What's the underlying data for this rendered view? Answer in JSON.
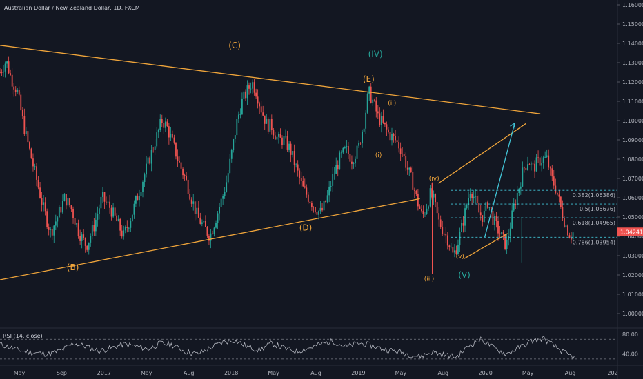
{
  "chart_data": {
    "type": "candlestick",
    "title": "Australian Dollar / New Zealand Dollar, 1D, FXCM",
    "price_axis": {
      "ylim": [
        0.9925,
        1.1625
      ],
      "ticks": [
        "1.16000",
        "1.15000",
        "1.14000",
        "1.13000",
        "1.12000",
        "1.11000",
        "1.10000",
        "1.09000",
        "1.08000",
        "1.07000",
        "1.06000",
        "1.05000",
        "1.04000",
        "1.03000",
        "1.02000",
        "1.01000",
        "1.00000"
      ],
      "last_price": "1.04241",
      "last_price_value": 1.04241
    },
    "time_axis": {
      "labels": [
        "May",
        "Sep",
        "2017",
        "May",
        "Aug",
        "2018",
        "May",
        "Aug",
        "2019",
        "May",
        "Aug",
        "2020",
        "May",
        "Aug",
        "202"
      ]
    },
    "close_path": [
      [
        0,
        1.125
      ],
      [
        0.01,
        1.131
      ],
      [
        0.018,
        1.122
      ],
      [
        0.028,
        1.115
      ],
      [
        0.04,
        1.095
      ],
      [
        0.055,
        1.075
      ],
      [
        0.07,
        1.055
      ],
      [
        0.082,
        1.042
      ],
      [
        0.093,
        1.05
      ],
      [
        0.105,
        1.06
      ],
      [
        0.115,
        1.055
      ],
      [
        0.128,
        1.042
      ],
      [
        0.14,
        1.035
      ],
      [
        0.152,
        1.045
      ],
      [
        0.165,
        1.06
      ],
      [
        0.178,
        1.055
      ],
      [
        0.19,
        1.047
      ],
      [
        0.2,
        1.04
      ],
      [
        0.212,
        1.05
      ],
      [
        0.222,
        1.06
      ],
      [
        0.232,
        1.07
      ],
      [
        0.242,
        1.08
      ],
      [
        0.252,
        1.09
      ],
      [
        0.262,
        1.1
      ],
      [
        0.27,
        1.097
      ],
      [
        0.28,
        1.088
      ],
      [
        0.29,
        1.078
      ],
      [
        0.3,
        1.07
      ],
      [
        0.31,
        1.06
      ],
      [
        0.32,
        1.05
      ],
      [
        0.33,
        1.045
      ],
      [
        0.34,
        1.04
      ],
      [
        0.35,
        1.05
      ],
      [
        0.36,
        1.06
      ],
      [
        0.368,
        1.07
      ],
      [
        0.376,
        1.085
      ],
      [
        0.384,
        1.1
      ],
      [
        0.392,
        1.11
      ],
      [
        0.4,
        1.115
      ],
      [
        0.408,
        1.12
      ],
      [
        0.415,
        1.115
      ],
      [
        0.424,
        1.105
      ],
      [
        0.432,
        1.098
      ],
      [
        0.44,
        1.097
      ],
      [
        0.45,
        1.09
      ],
      [
        0.46,
        1.09
      ],
      [
        0.47,
        1.085
      ],
      [
        0.48,
        1.075
      ],
      [
        0.49,
        1.065
      ],
      [
        0.5,
        1.06
      ],
      [
        0.51,
        1.055
      ],
      [
        0.52,
        1.052
      ],
      [
        0.53,
        1.06
      ],
      [
        0.54,
        1.072
      ],
      [
        0.55,
        1.08
      ],
      [
        0.56,
        1.085
      ],
      [
        0.57,
        1.08
      ],
      [
        0.58,
        1.085
      ],
      [
        0.59,
        1.1
      ],
      [
        0.597,
        1.115
      ],
      [
        0.604,
        1.11
      ],
      [
        0.612,
        1.102
      ],
      [
        0.62,
        1.098
      ],
      [
        0.63,
        1.093
      ],
      [
        0.64,
        1.09
      ],
      [
        0.65,
        1.085
      ],
      [
        0.66,
        1.075
      ],
      [
        0.668,
        1.068
      ],
      [
        0.676,
        1.058
      ],
      [
        0.684,
        1.05
      ],
      [
        0.69,
        1.055
      ],
      [
        0.697,
        1.062
      ],
      [
        0.703,
        1.058
      ],
      [
        0.71,
        1.048
      ],
      [
        0.718,
        1.043
      ],
      [
        0.726,
        1.038
      ],
      [
        0.734,
        1.03
      ],
      [
        0.74,
        1.035
      ],
      [
        0.748,
        1.045
      ],
      [
        0.755,
        1.055
      ],
      [
        0.762,
        1.065
      ],
      [
        0.768,
        1.06
      ],
      [
        0.776,
        1.052
      ],
      [
        0.783,
        1.05
      ],
      [
        0.79,
        1.058
      ],
      [
        0.797,
        1.05
      ],
      [
        0.804,
        1.045
      ],
      [
        0.812,
        1.04
      ],
      [
        0.82,
        1.035
      ],
      [
        0.826,
        1.045
      ],
      [
        0.832,
        1.055
      ],
      [
        0.84,
        1.065
      ],
      [
        0.848,
        1.075
      ],
      [
        0.856,
        1.08
      ],
      [
        0.862,
        1.075
      ],
      [
        0.87,
        1.078
      ],
      [
        0.878,
        1.08
      ],
      [
        0.886,
        1.08
      ],
      [
        0.893,
        1.07
      ],
      [
        0.9,
        1.065
      ],
      [
        0.908,
        1.055
      ],
      [
        0.916,
        1.046
      ],
      [
        0.924,
        1.04
      ],
      [
        0.928,
        1.042
      ]
    ],
    "waves": [
      {
        "label": "(B)",
        "t": 0.118,
        "price": 1.0225,
        "color": "#f0a53b"
      },
      {
        "label": "(C)",
        "t": 0.38,
        "price": 1.1375,
        "color": "#f0a53b"
      },
      {
        "label": "(IV)",
        "t": 0.608,
        "price": 1.133,
        "color": "#26a69a"
      },
      {
        "label": "(E)",
        "t": 0.597,
        "price": 1.12,
        "color": "#f0a53b"
      },
      {
        "label": "(D)",
        "t": 0.495,
        "price": 1.043,
        "color": "#f0a53b"
      },
      {
        "label": "(ii)",
        "t": 0.635,
        "price": 1.108,
        "color": "#f0a53b"
      },
      {
        "label": "(i)",
        "t": 0.613,
        "price": 1.081,
        "color": "#f0a53b"
      },
      {
        "label": "(iv)",
        "t": 0.703,
        "price": 1.069,
        "color": "#f0a53b"
      },
      {
        "label": "(v)",
        "t": 0.745,
        "price": 1.0285,
        "color": "#f0a53b"
      },
      {
        "label": "(iii)",
        "t": 0.695,
        "price": 1.017,
        "color": "#f0a53b"
      },
      {
        "label": "(V)",
        "t": 0.752,
        "price": 1.0185,
        "color": "#26a69a"
      }
    ],
    "fib_levels": [
      {
        "label": "0.382(1.06386)",
        "value": 1.06386
      },
      {
        "label": "0.5(1.05676)",
        "value": 1.05676
      },
      {
        "label": "0.618(1.04965)",
        "value": 1.04965
      },
      {
        "label": "0.786(1.03954)",
        "value": 1.03954
      }
    ],
    "rsi": {
      "title": "RSI (14, close)",
      "ticks": [
        "80.00",
        "40.00"
      ],
      "ylim": [
        20,
        90
      ],
      "upper": 70,
      "lower": 30,
      "path": [
        [
          0,
          60
        ],
        [
          0.02,
          52
        ],
        [
          0.04,
          45
        ],
        [
          0.06,
          42
        ],
        [
          0.08,
          40
        ],
        [
          0.1,
          48
        ],
        [
          0.12,
          62
        ],
        [
          0.14,
          55
        ],
        [
          0.16,
          46
        ],
        [
          0.18,
          52
        ],
        [
          0.2,
          60
        ],
        [
          0.22,
          56
        ],
        [
          0.24,
          50
        ],
        [
          0.26,
          62
        ],
        [
          0.28,
          58
        ],
        [
          0.3,
          45
        ],
        [
          0.32,
          40
        ],
        [
          0.34,
          52
        ],
        [
          0.36,
          64
        ],
        [
          0.38,
          68
        ],
        [
          0.4,
          55
        ],
        [
          0.42,
          48
        ],
        [
          0.44,
          62
        ],
        [
          0.46,
          52
        ],
        [
          0.48,
          45
        ],
        [
          0.5,
          52
        ],
        [
          0.52,
          60
        ],
        [
          0.54,
          66
        ],
        [
          0.56,
          54
        ],
        [
          0.58,
          62
        ],
        [
          0.6,
          58
        ],
        [
          0.62,
          50
        ],
        [
          0.64,
          46
        ],
        [
          0.66,
          40
        ],
        [
          0.68,
          35
        ],
        [
          0.7,
          44
        ],
        [
          0.72,
          38
        ],
        [
          0.74,
          34
        ],
        [
          0.76,
          58
        ],
        [
          0.78,
          70
        ],
        [
          0.8,
          52
        ],
        [
          0.82,
          40
        ],
        [
          0.84,
          52
        ],
        [
          0.86,
          66
        ],
        [
          0.88,
          72
        ],
        [
          0.9,
          54
        ],
        [
          0.92,
          38
        ],
        [
          0.93,
          33
        ]
      ]
    }
  }
}
